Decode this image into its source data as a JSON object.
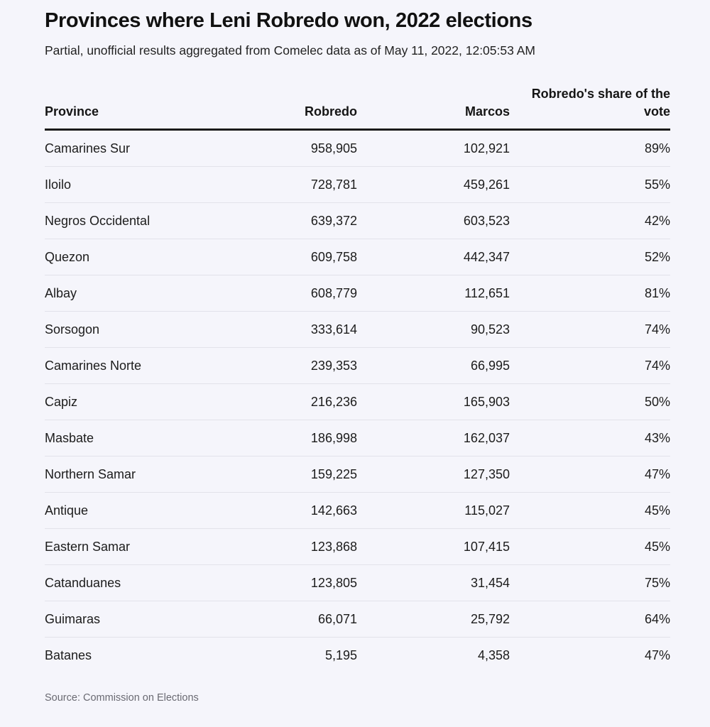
{
  "title": "Provinces where Leni Robredo won, 2022 elections",
  "subtitle": "Partial, unofficial results aggregated from Comelec data as of May 11, 2022, 12:05:53 AM",
  "source": "Source: Commission on Elections",
  "chart_data": {
    "type": "table",
    "columns": [
      "Province",
      "Robredo",
      "Marcos",
      "Robredo's share of the vote"
    ],
    "rows": [
      [
        "Camarines Sur",
        "958,905",
        "102,921",
        "89%"
      ],
      [
        "Iloilo",
        "728,781",
        "459,261",
        "55%"
      ],
      [
        "Negros Occidental",
        "639,372",
        "603,523",
        "42%"
      ],
      [
        "Quezon",
        "609,758",
        "442,347",
        "52%"
      ],
      [
        "Albay",
        "608,779",
        "112,651",
        "81%"
      ],
      [
        "Sorsogon",
        "333,614",
        "90,523",
        "74%"
      ],
      [
        "Camarines Norte",
        "239,353",
        "66,995",
        "74%"
      ],
      [
        "Capiz",
        "216,236",
        "165,903",
        "50%"
      ],
      [
        "Masbate",
        "186,998",
        "162,037",
        "43%"
      ],
      [
        "Northern Samar",
        "159,225",
        "127,350",
        "47%"
      ],
      [
        "Antique",
        "142,663",
        "115,027",
        "45%"
      ],
      [
        "Eastern Samar",
        "123,868",
        "107,415",
        "45%"
      ],
      [
        "Catanduanes",
        "123,805",
        "31,454",
        "75%"
      ],
      [
        "Guimaras",
        "66,071",
        "25,792",
        "64%"
      ],
      [
        "Batanes",
        "5,195",
        "4,358",
        "47%"
      ]
    ]
  }
}
